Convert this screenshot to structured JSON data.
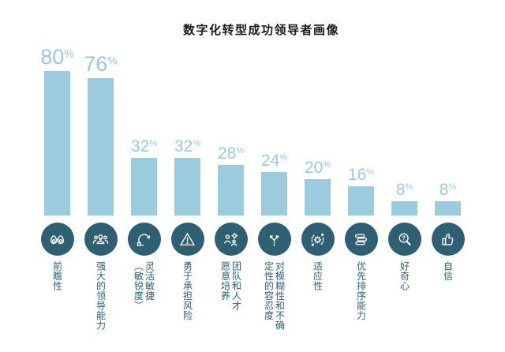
{
  "title": "数字化转型成功领导者画像",
  "colors": {
    "bar": "#9ccbde",
    "value_label": "#99c9dd",
    "icon_circle": "#2f5f72",
    "category_label": "#2e6074",
    "title_text": "#1a1a1a",
    "background": "#ffffff"
  },
  "chart_data": {
    "type": "bar",
    "title": "数字化转型成功领导者画像",
    "orientation": "vertical",
    "unit": "%",
    "categories": [
      "前瞻性",
      "强大的领导能力",
      "灵活敏捷（敏锐度）",
      "勇于承担风险",
      "团队和人才愿意培养",
      "对模糊性和不确定性的容忍度",
      "适应性",
      "优先排序能力",
      "好奇心",
      "自信"
    ],
    "display_labels": [
      "前瞻性",
      "强大的领导能力",
      "灵活敏捷\n（敏锐度）",
      "勇于承担风险",
      "团队和人才\n愿意培养",
      "对模糊性和不确\n定性的容忍度",
      "适应性",
      "优先排序能力",
      "好奇心",
      "自信"
    ],
    "values": [
      80,
      76,
      32,
      32,
      28,
      24,
      20,
      16,
      8,
      8
    ],
    "icons": [
      "binoculars-icon",
      "team-leadership-icon",
      "agility-loop-icon",
      "risk-warning-icon",
      "talent-development-icon",
      "branching-paths-icon",
      "adaptability-gear-icon",
      "priority-stack-icon",
      "curiosity-magnifier-icon",
      "thumbs-up-icon"
    ],
    "ylim": [
      0,
      100
    ],
    "grid": false,
    "axes_visible": false,
    "legend": false,
    "value_label_position": "above-bar"
  }
}
